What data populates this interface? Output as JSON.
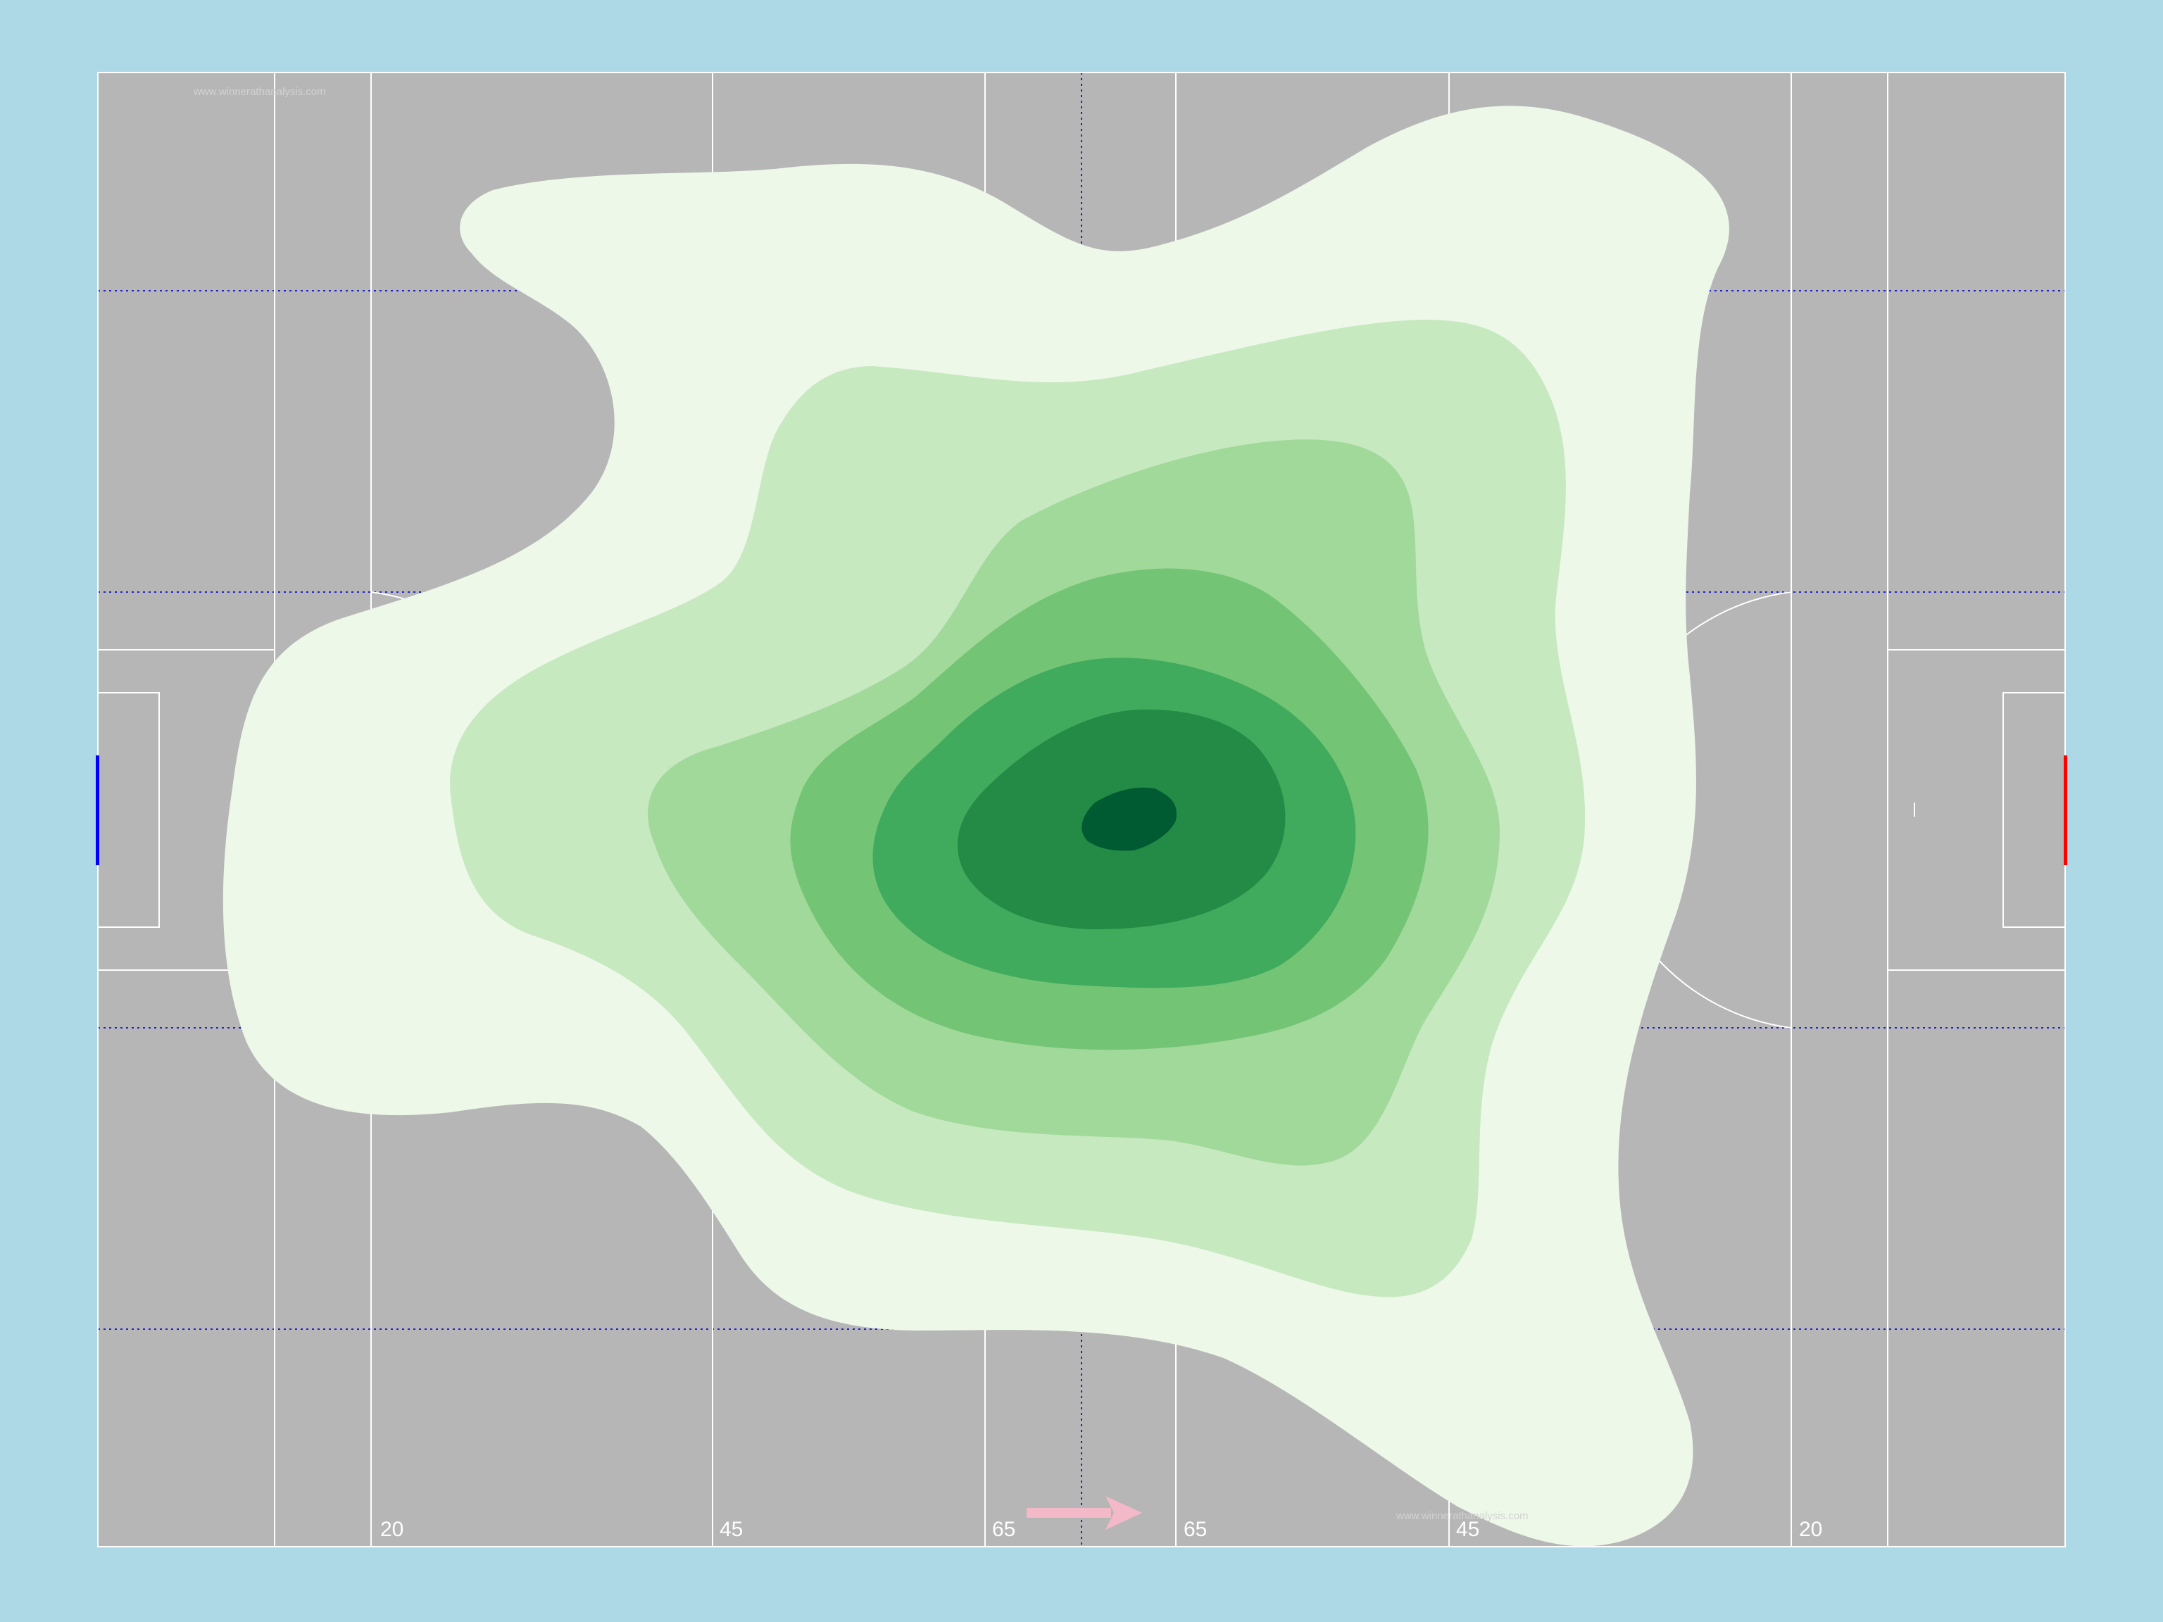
{
  "pitch": {
    "background_color": "#add8e6",
    "surface_color": "#b6b6b6",
    "line_color": "#ffffff",
    "grid_color": "#2222cc",
    "left_goal_color": "#0000ff",
    "right_goal_color": "#ff0000",
    "direction_arrow_color": "#f4b9c8",
    "direction_arrow_icon": "arrow-right-icon",
    "yard_labels": [
      "20",
      "45",
      "65",
      "65",
      "45",
      "20"
    ],
    "watermark_top": "www.winnerathanalysis.com",
    "watermark_bottom": "www.winnerathanalysis.com"
  },
  "heatmap": {
    "type": "density-contour",
    "levels": 7,
    "palette": [
      "#edf8e9",
      "#c7e9c0",
      "#a1d99b",
      "#74c476",
      "#41ab5d",
      "#238b45",
      "#005a32"
    ]
  }
}
